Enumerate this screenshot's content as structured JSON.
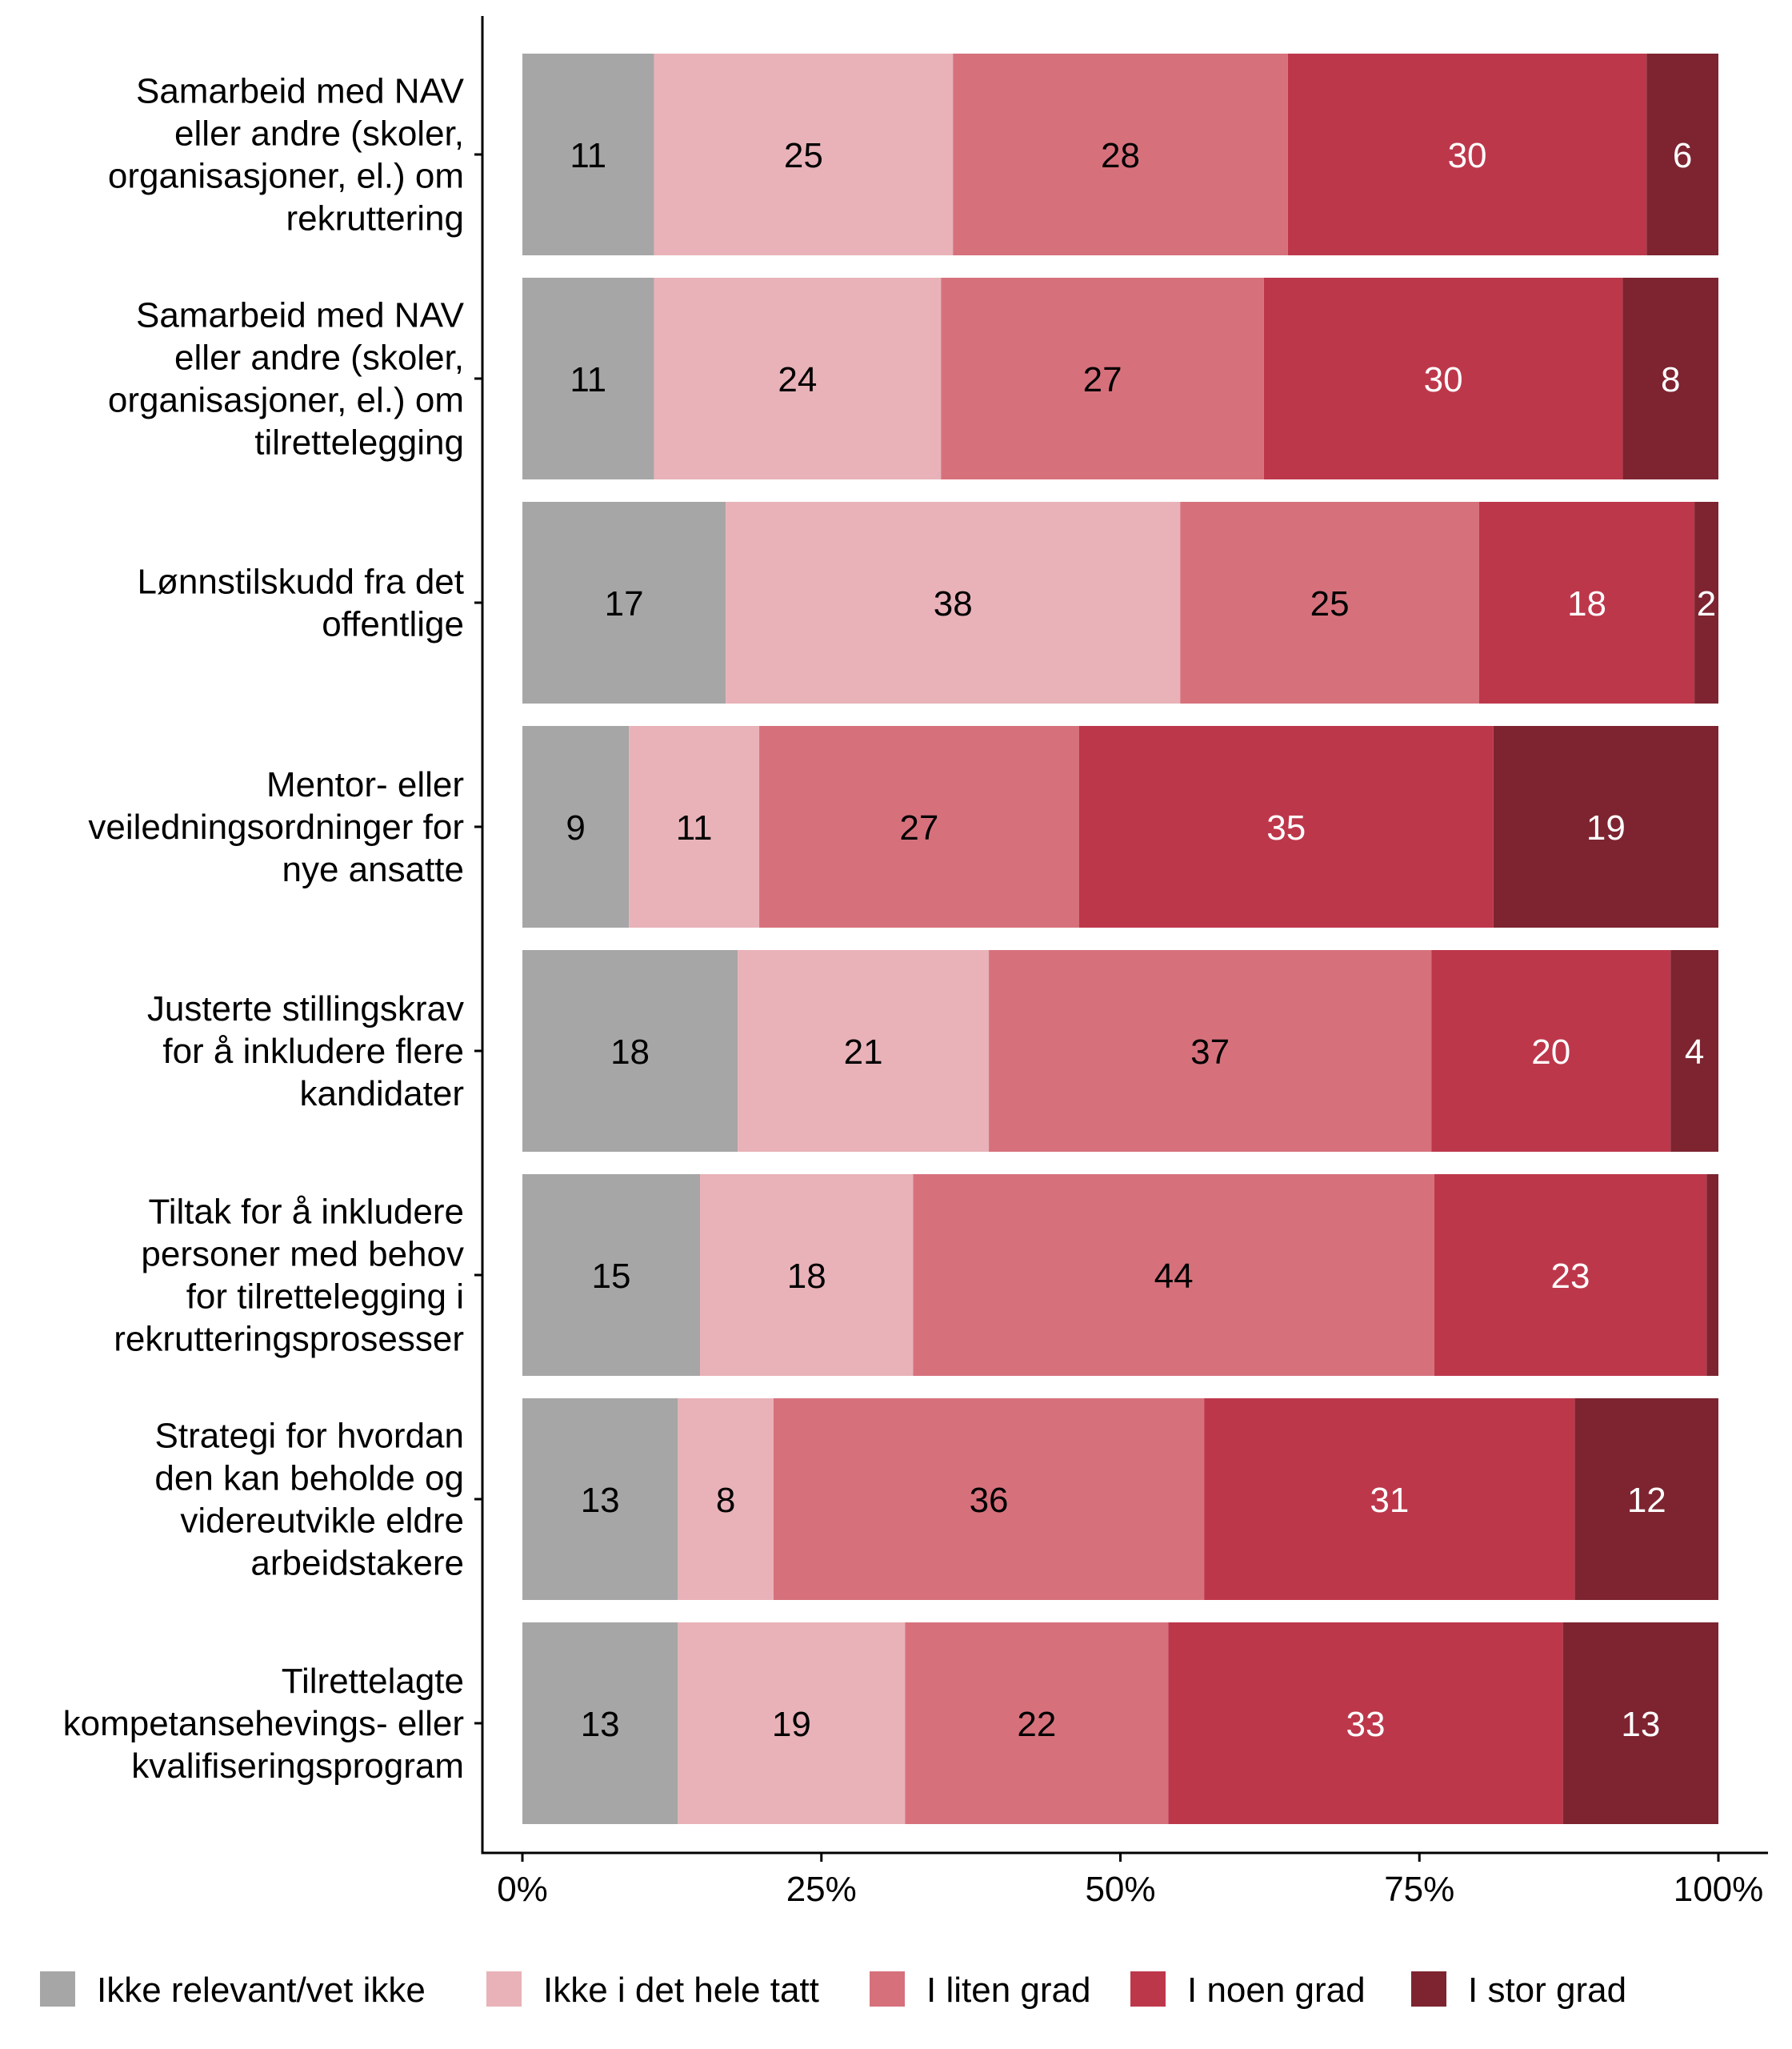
{
  "chart_data": {
    "type": "bar",
    "orientation": "horizontal",
    "stacked": true,
    "percent_stacked": true,
    "categories": [
      "Samarbeid med NAV eller andre (skoler, organisasjoner, el.) om rekruttering",
      "Samarbeid med NAV eller andre (skoler, organisasjoner, el.) om tilrettelegging",
      "Lønnstilskudd fra det offentlige",
      "Mentor- eller veiledningsordninger for nye ansatte",
      "Justerte stillingskrav for å inkludere flere kandidater",
      "Tiltak for å inkludere personer med behov for tilrettelegging i rekrutteringsprosesser",
      "Strategi for hvordan den kan beholde og videreutvikle eldre arbeidstakere",
      "Tilrettelagte kompetansehevings- eller kvalifiseringsprogram"
    ],
    "category_lines": [
      [
        "Samarbeid med NAV",
        "eller andre (skoler,",
        "organisasjoner, el.) om",
        "rekruttering"
      ],
      [
        "Samarbeid med NAV",
        "eller andre (skoler,",
        "organisasjoner, el.) om",
        "tilrettelegging"
      ],
      [
        "Lønnstilskudd fra det",
        "offentlige"
      ],
      [
        "Mentor- eller",
        "veiledningsordninger for",
        "nye ansatte"
      ],
      [
        "Justerte stillingskrav",
        "for å inkludere flere",
        "kandidater"
      ],
      [
        "Tiltak for å inkludere",
        "personer med behov",
        "for tilrettelegging i",
        "rekrutteringsprosesser"
      ],
      [
        "Strategi for hvordan",
        "den kan beholde og",
        "videreutvikle eldre",
        "arbeidstakere"
      ],
      [
        "Tilrettelagte",
        "kompetansehevings- eller",
        "kvalifiseringsprogram"
      ]
    ],
    "series": [
      {
        "name": "Ikke relevant/vet ikke",
        "color": "#a6a6a6",
        "label_color": "#000000",
        "values": [
          11,
          11,
          17,
          9,
          18,
          15,
          13,
          13
        ]
      },
      {
        "name": "Ikke i det hele tatt",
        "color": "#e8b2b8",
        "label_color": "#000000",
        "values": [
          25,
          24,
          38,
          11,
          21,
          18,
          8,
          19
        ]
      },
      {
        "name": "I liten grad",
        "color": "#d6717c",
        "label_color": "#000000",
        "values": [
          28,
          27,
          25,
          27,
          37,
          44,
          36,
          22
        ]
      },
      {
        "name": "I noen grad",
        "color": "#bd374b",
        "label_color": "#ffffff",
        "values": [
          30,
          30,
          18,
          35,
          20,
          23,
          31,
          33
        ]
      },
      {
        "name": "I stor grad",
        "color": "#7d2430",
        "label_color": "#ffffff",
        "values": [
          6,
          8,
          2,
          19,
          4,
          1,
          12,
          13
        ]
      }
    ],
    "data_labels": [
      [
        "11",
        "25",
        "28",
        "30",
        "6"
      ],
      [
        "11",
        "24",
        "27",
        "30",
        "8"
      ],
      [
        "17",
        "38",
        "25",
        "18",
        "2"
      ],
      [
        "9",
        "11",
        "27",
        "35",
        "19"
      ],
      [
        "18",
        "21",
        "37",
        "20",
        "4"
      ],
      [
        "15",
        "18",
        "44",
        "23",
        ""
      ],
      [
        "13",
        "8",
        "36",
        "31",
        "12"
      ],
      [
        "13",
        "19",
        "22",
        "33",
        "13"
      ]
    ],
    "x_ticks": [
      "0%",
      "25%",
      "50%",
      "75%",
      "100%"
    ],
    "xlim": [
      0,
      100
    ],
    "title": "",
    "xlabel": "",
    "ylabel": "",
    "grid": false,
    "legend_position": "bottom"
  }
}
